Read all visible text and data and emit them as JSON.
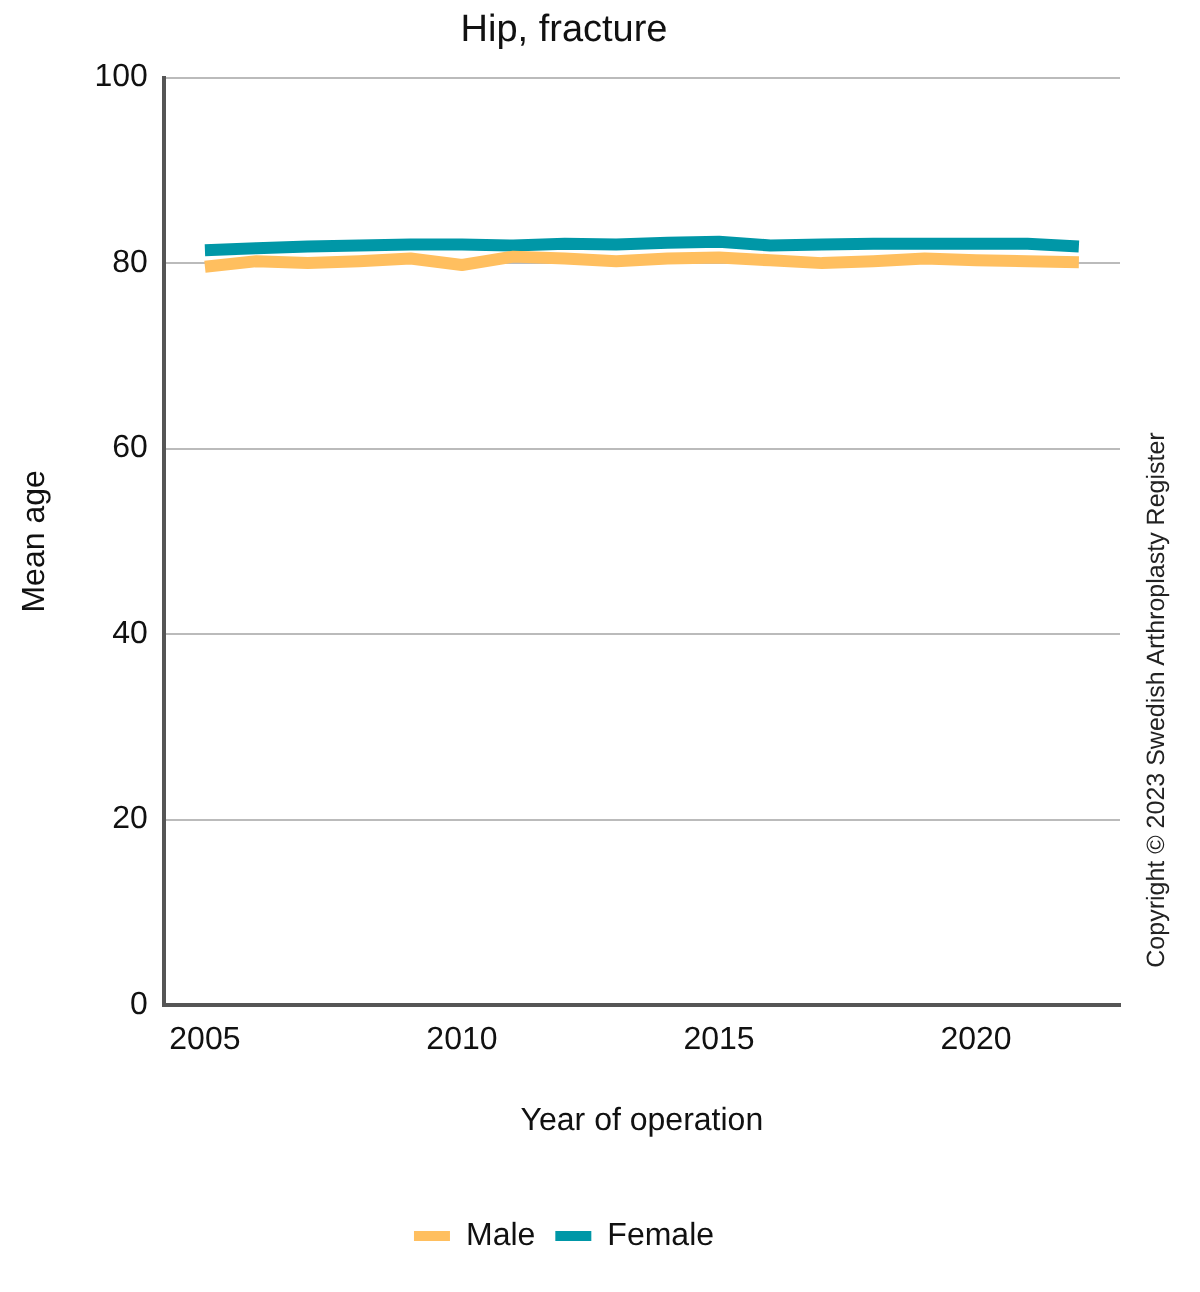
{
  "chart_data": {
    "type": "line",
    "title": "Hip, fracture",
    "xlabel": "Year of operation",
    "ylabel": "Mean age",
    "x": [
      2005,
      2006,
      2007,
      2008,
      2009,
      2010,
      2011,
      2012,
      2013,
      2014,
      2015,
      2016,
      2017,
      2018,
      2019,
      2020,
      2021,
      2022
    ],
    "series": [
      {
        "name": "Male",
        "color": "#ffbf5f",
        "values": [
          79.6,
          80.2,
          80.0,
          80.2,
          80.5,
          79.8,
          80.7,
          80.5,
          80.2,
          80.5,
          80.6,
          80.3,
          80.0,
          80.2,
          80.5,
          80.3,
          80.2,
          80.1
        ]
      },
      {
        "name": "Female",
        "color": "#0097a7",
        "values": [
          81.4,
          81.6,
          81.8,
          81.9,
          82.0,
          82.0,
          81.9,
          82.1,
          82.0,
          82.2,
          82.3,
          81.9,
          82.0,
          82.1,
          82.1,
          82.1,
          82.1,
          81.8
        ]
      }
    ],
    "xlim": [
      2004.2,
      2022.8
    ],
    "xticks": [
      2005,
      2010,
      2015,
      2020
    ],
    "ylim": [
      0,
      100
    ],
    "yticks": [
      0,
      20,
      40,
      60,
      80,
      100
    ],
    "grid": "y",
    "legend": "bottom",
    "marker": "none",
    "line_style": "solid",
    "annotations": [
      "Copyright © 2023 Swedish Arthroplasty Register"
    ]
  }
}
